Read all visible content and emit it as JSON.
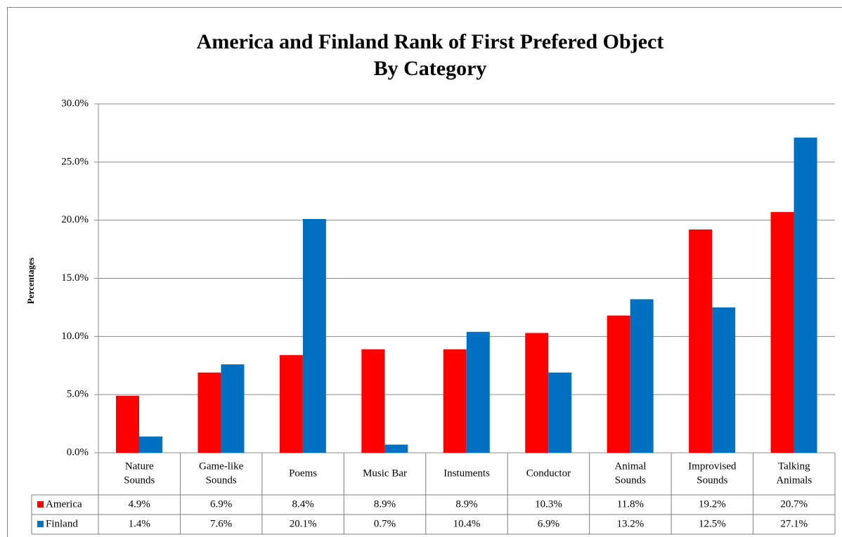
{
  "chart_data": {
    "type": "bar",
    "title": [
      "America and Finland Rank of First Prefered Object",
      "By Category"
    ],
    "ylabel": "Percentages",
    "categories": [
      [
        "Nature",
        "Sounds"
      ],
      [
        "Game-like",
        "Sounds"
      ],
      [
        "Poems"
      ],
      [
        "Music Bar"
      ],
      [
        "Instuments"
      ],
      [
        "Conductor"
      ],
      [
        "Animal",
        "Sounds"
      ],
      [
        "Improvised",
        "Sounds"
      ],
      [
        "Talking",
        "Animals"
      ]
    ],
    "series": [
      {
        "name": "America",
        "color": "#ff0000",
        "values": [
          4.9,
          6.9,
          8.4,
          8.9,
          8.9,
          10.3,
          11.8,
          19.2,
          20.7
        ],
        "value_labels": [
          "4.9%",
          "6.9%",
          "8.4%",
          "8.9%",
          "8.9%",
          "10.3%",
          "11.8%",
          "19.2%",
          "20.7%"
        ]
      },
      {
        "name": "Finland",
        "color": "#0070c0",
        "values": [
          1.4,
          7.6,
          20.1,
          0.7,
          10.4,
          6.9,
          13.2,
          12.5,
          27.1
        ],
        "value_labels": [
          "1.4%",
          "7.6%",
          "20.1%",
          "0.7%",
          "10.4%",
          "6.9%",
          "13.2%",
          "12.5%",
          "27.1%"
        ]
      }
    ],
    "ylim": [
      0,
      30
    ],
    "yticks": [
      {
        "value": 0,
        "label": "0.0%"
      },
      {
        "value": 5,
        "label": "5.0%"
      },
      {
        "value": 10,
        "label": "10.0%"
      },
      {
        "value": 15,
        "label": "15.0%"
      },
      {
        "value": 20,
        "label": "20.0%"
      },
      {
        "value": 25,
        "label": "25.0%"
      },
      {
        "value": 30,
        "label": "30.0%"
      }
    ],
    "grid": true
  }
}
